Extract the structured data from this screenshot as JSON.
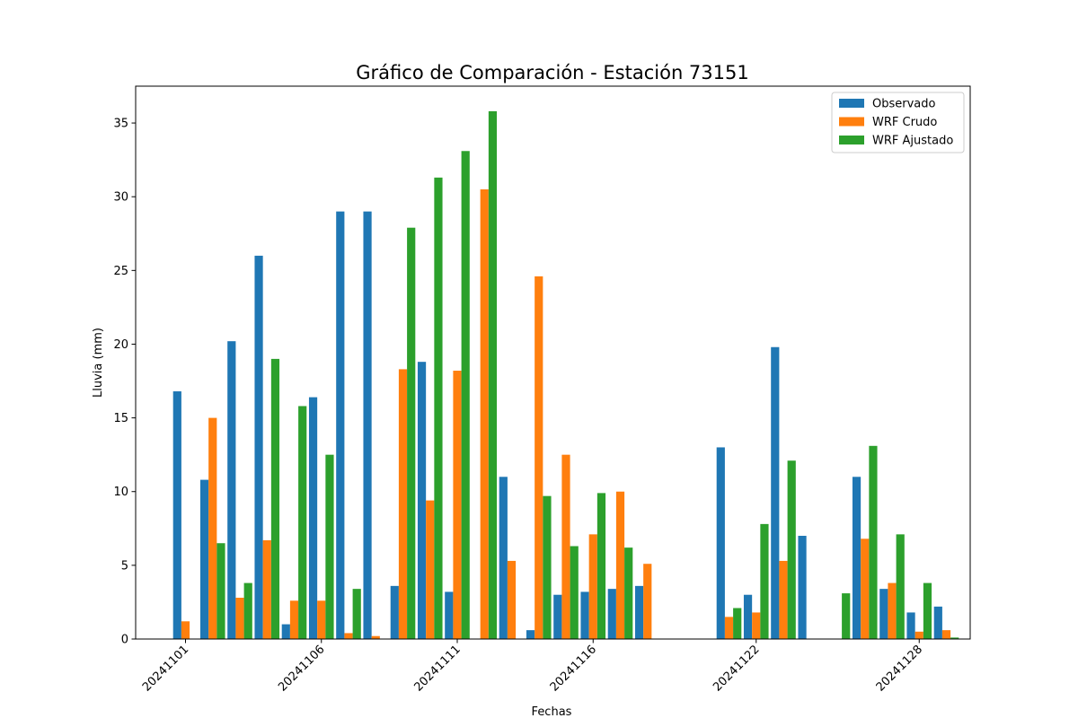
{
  "chart_data": {
    "type": "bar",
    "title": "Gráfico de Comparación - Estación 73151",
    "xlabel": "Fechas",
    "ylabel": "Lluvia (mm)",
    "ylim": [
      0,
      37.5
    ],
    "yticks": [
      0,
      5,
      10,
      15,
      20,
      25,
      30,
      35
    ],
    "x_tick_labels": [
      {
        "date": "2024-11-01",
        "label": "20241101"
      },
      {
        "date": "2024-11-06",
        "label": "20241106"
      },
      {
        "date": "2024-11-11",
        "label": "20241111"
      },
      {
        "date": "2024-11-16",
        "label": "20241116"
      },
      {
        "date": "2024-11-22",
        "label": "20241122"
      },
      {
        "date": "2024-11-28",
        "label": "20241128"
      }
    ],
    "legend_position": "top-right",
    "dates": [
      "2024-11-01",
      "2024-11-02",
      "2024-11-03",
      "2024-11-04",
      "2024-11-05",
      "2024-11-06",
      "2024-11-07",
      "2024-11-08",
      "2024-11-09",
      "2024-11-10",
      "2024-11-11",
      "2024-11-12",
      "2024-11-13",
      "2024-11-14",
      "2024-11-15",
      "2024-11-16",
      "2024-11-17",
      "2024-11-18",
      "2024-11-21",
      "2024-11-22",
      "2024-11-23",
      "2024-11-24",
      "2024-11-25",
      "2024-11-26",
      "2024-11-27",
      "2024-11-28",
      "2024-11-29"
    ],
    "series": [
      {
        "name": "Observado",
        "color": "#1f77b4",
        "values": [
          16.8,
          10.8,
          20.2,
          26.0,
          1.0,
          16.4,
          29.0,
          29.0,
          3.6,
          18.8,
          3.2,
          0.0,
          11.0,
          0.6,
          3.0,
          3.2,
          3.4,
          3.6,
          13.0,
          3.0,
          19.8,
          7.0,
          0.0,
          11.0,
          3.4,
          1.8,
          2.2
        ]
      },
      {
        "name": "WRF Crudo",
        "color": "#ff7f0e",
        "values": [
          1.2,
          15.0,
          2.8,
          6.7,
          2.6,
          2.6,
          0.4,
          0.2,
          18.3,
          9.4,
          18.2,
          30.5,
          5.3,
          24.6,
          12.5,
          7.1,
          10.0,
          5.1,
          1.5,
          1.8,
          5.3,
          0.0,
          0.0,
          6.8,
          3.8,
          0.5,
          0.6
        ]
      },
      {
        "name": "WRF Ajustado",
        "color": "#2ca02c",
        "values": [
          0.0,
          6.5,
          3.8,
          19.0,
          15.8,
          12.5,
          3.4,
          0.0,
          27.9,
          31.3,
          33.1,
          35.8,
          0.0,
          9.7,
          6.3,
          9.9,
          6.2,
          0.0,
          2.1,
          7.8,
          12.1,
          0.0,
          3.1,
          13.1,
          7.1,
          3.8,
          0.1
        ]
      }
    ]
  }
}
